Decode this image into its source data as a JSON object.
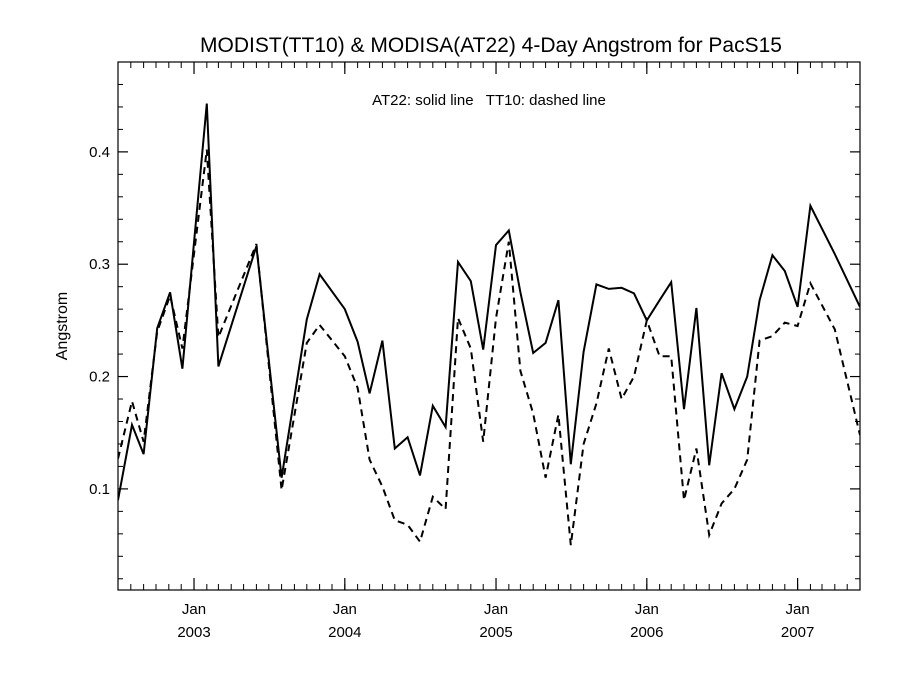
{
  "chart_data": {
    "type": "line",
    "title": "MODIST(TT10) & MODISA(AT22) 4-Day Angstrom for PacS15",
    "xlabel": "",
    "ylabel": "Angstrom",
    "annotation": "AT22: solid line   TT10: dashed line",
    "x_is_date": true,
    "xlim": [
      "2002-07-01",
      "2007-06-01"
    ],
    "ylim": [
      0.01,
      0.48
    ],
    "y_ticks": [
      0.1,
      0.2,
      0.3,
      0.4
    ],
    "y_tick_labels": [
      "0.1",
      "0.2",
      "0.3",
      "0.4"
    ],
    "x_ticks": [
      {
        "date": "2003-01-01",
        "month": "Jan",
        "year": "2003"
      },
      {
        "date": "2004-01-01",
        "month": "Jan",
        "year": "2004"
      },
      {
        "date": "2005-01-01",
        "month": "Jan",
        "year": "2005"
      },
      {
        "date": "2006-01-01",
        "month": "Jan",
        "year": "2006"
      },
      {
        "date": "2007-01-01",
        "month": "Jan",
        "year": "2007"
      }
    ],
    "grid": false,
    "series": [
      {
        "name": "AT22",
        "style": "solid",
        "color": "#000000",
        "points": [
          [
            "2002-07-01",
            0.09
          ],
          [
            "2002-08-04",
            0.157
          ],
          [
            "2002-09-01",
            0.131
          ],
          [
            "2002-10-04",
            0.243
          ],
          [
            "2002-11-04",
            0.275
          ],
          [
            "2002-12-04",
            0.207
          ],
          [
            "2003-02-01",
            0.443
          ],
          [
            "2003-03-01",
            0.209
          ],
          [
            "2003-06-01",
            0.316
          ],
          [
            "2003-08-01",
            0.11
          ],
          [
            "2003-10-01",
            0.251
          ],
          [
            "2003-11-01",
            0.291
          ],
          [
            "2004-01-01",
            0.26
          ],
          [
            "2004-02-01",
            0.231
          ],
          [
            "2004-03-01",
            0.185
          ],
          [
            "2004-04-01",
            0.232
          ],
          [
            "2004-05-01",
            0.136
          ],
          [
            "2004-06-01",
            0.146
          ],
          [
            "2004-07-01",
            0.112
          ],
          [
            "2004-08-01",
            0.174
          ],
          [
            "2004-09-01",
            0.155
          ],
          [
            "2004-10-01",
            0.302
          ],
          [
            "2004-11-01",
            0.285
          ],
          [
            "2004-12-01",
            0.224
          ],
          [
            "2005-01-01",
            0.317
          ],
          [
            "2005-02-01",
            0.33
          ],
          [
            "2005-03-01",
            0.275
          ],
          [
            "2005-04-01",
            0.221
          ],
          [
            "2005-05-01",
            0.23
          ],
          [
            "2005-06-01",
            0.268
          ],
          [
            "2005-07-01",
            0.122
          ],
          [
            "2005-08-01",
            0.222
          ],
          [
            "2005-09-01",
            0.282
          ],
          [
            "2005-10-01",
            0.278
          ],
          [
            "2005-11-01",
            0.279
          ],
          [
            "2005-12-01",
            0.274
          ],
          [
            "2006-01-01",
            0.25
          ],
          [
            "2006-02-01",
            0.268
          ],
          [
            "2006-03-01",
            0.284
          ],
          [
            "2006-04-01",
            0.171
          ],
          [
            "2006-05-01",
            0.261
          ],
          [
            "2006-06-01",
            0.121
          ],
          [
            "2006-07-01",
            0.203
          ],
          [
            "2006-08-01",
            0.171
          ],
          [
            "2006-09-01",
            0.2
          ],
          [
            "2006-10-01",
            0.268
          ],
          [
            "2006-11-01",
            0.308
          ],
          [
            "2006-12-01",
            0.294
          ],
          [
            "2007-01-01",
            0.262
          ],
          [
            "2007-02-01",
            0.352
          ],
          [
            "2007-04-01",
            0.309
          ],
          [
            "2007-06-01",
            0.262
          ]
        ]
      },
      {
        "name": "TT10",
        "style": "dashed",
        "color": "#000000",
        "points": [
          [
            "2002-07-01",
            0.127
          ],
          [
            "2002-08-04",
            0.178
          ],
          [
            "2002-09-01",
            0.142
          ],
          [
            "2002-10-04",
            0.24
          ],
          [
            "2002-11-04",
            0.272
          ],
          [
            "2002-12-04",
            0.225
          ],
          [
            "2003-02-01",
            0.402
          ],
          [
            "2003-03-01",
            0.235
          ],
          [
            "2003-06-01",
            0.318
          ],
          [
            "2003-08-01",
            0.099
          ],
          [
            "2003-10-01",
            0.23
          ],
          [
            "2003-11-01",
            0.246
          ],
          [
            "2004-01-01",
            0.218
          ],
          [
            "2004-02-01",
            0.19
          ],
          [
            "2004-03-01",
            0.126
          ],
          [
            "2004-04-01",
            0.102
          ],
          [
            "2004-05-01",
            0.072
          ],
          [
            "2004-06-01",
            0.068
          ],
          [
            "2004-07-01",
            0.053
          ],
          [
            "2004-08-01",
            0.093
          ],
          [
            "2004-09-01",
            0.082
          ],
          [
            "2004-10-01",
            0.252
          ],
          [
            "2004-11-01",
            0.225
          ],
          [
            "2004-12-01",
            0.142
          ],
          [
            "2005-01-01",
            0.252
          ],
          [
            "2005-02-01",
            0.32
          ],
          [
            "2005-03-01",
            0.205
          ],
          [
            "2005-04-01",
            0.167
          ],
          [
            "2005-05-01",
            0.11
          ],
          [
            "2005-06-01",
            0.166
          ],
          [
            "2005-07-01",
            0.05
          ],
          [
            "2005-08-01",
            0.14
          ],
          [
            "2005-09-01",
            0.176
          ],
          [
            "2005-10-01",
            0.225
          ],
          [
            "2005-11-01",
            0.18
          ],
          [
            "2005-12-01",
            0.2
          ],
          [
            "2006-01-01",
            0.25
          ],
          [
            "2006-02-01",
            0.218
          ],
          [
            "2006-03-01",
            0.218
          ],
          [
            "2006-04-01",
            0.09
          ],
          [
            "2006-05-01",
            0.136
          ],
          [
            "2006-06-01",
            0.059
          ],
          [
            "2006-07-01",
            0.087
          ],
          [
            "2006-08-01",
            0.1
          ],
          [
            "2006-09-01",
            0.126
          ],
          [
            "2006-10-01",
            0.232
          ],
          [
            "2006-11-01",
            0.236
          ],
          [
            "2006-12-01",
            0.248
          ],
          [
            "2007-01-01",
            0.245
          ],
          [
            "2007-02-01",
            0.283
          ],
          [
            "2007-04-01",
            0.242
          ],
          [
            "2007-06-01",
            0.148
          ]
        ]
      }
    ]
  }
}
